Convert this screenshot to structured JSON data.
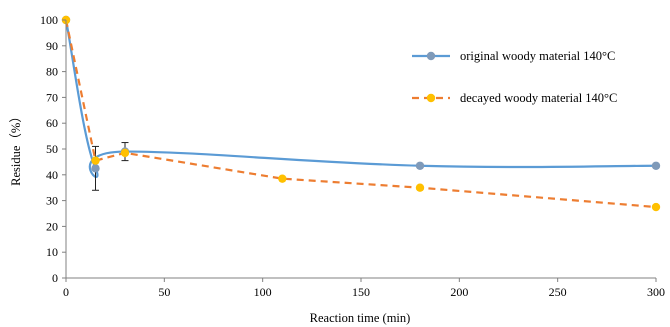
{
  "chart_data": {
    "type": "line",
    "xlabel": "Reaction time (min)",
    "ylabel": "Residue（%）",
    "xlim": [
      0,
      300
    ],
    "ylim": [
      0,
      100
    ],
    "x_ticks": [
      "0",
      "50",
      "100",
      "150",
      "200",
      "250",
      "300"
    ],
    "y_ticks": [
      "0",
      "10",
      "20",
      "30",
      "40",
      "50",
      "60",
      "70",
      "80",
      "90",
      "100"
    ],
    "grid": false,
    "legend_position": "right",
    "series": [
      {
        "name": "original woody material 140°C",
        "color": "#5b9bd5",
        "marker_color": "#7f9ab9",
        "line_style": "solid-smooth",
        "points": [
          {
            "x": 0,
            "y": 100
          },
          {
            "x": 15,
            "y": 42.5,
            "error": 8.5
          },
          {
            "x": 30,
            "y": 49,
            "error": 3.5
          },
          {
            "x": 180,
            "y": 43.5
          },
          {
            "x": 300,
            "y": 43.5
          }
        ]
      },
      {
        "name": "decayed woody material 140°C",
        "color": "#ed7d31",
        "marker_color": "#ffc000",
        "line_style": "dashed",
        "points": [
          {
            "x": 0,
            "y": 100
          },
          {
            "x": 15,
            "y": 45.5
          },
          {
            "x": 30,
            "y": 48.5
          },
          {
            "x": 110,
            "y": 38.5
          },
          {
            "x": 180,
            "y": 35
          },
          {
            "x": 300,
            "y": 27.5
          }
        ]
      }
    ]
  }
}
